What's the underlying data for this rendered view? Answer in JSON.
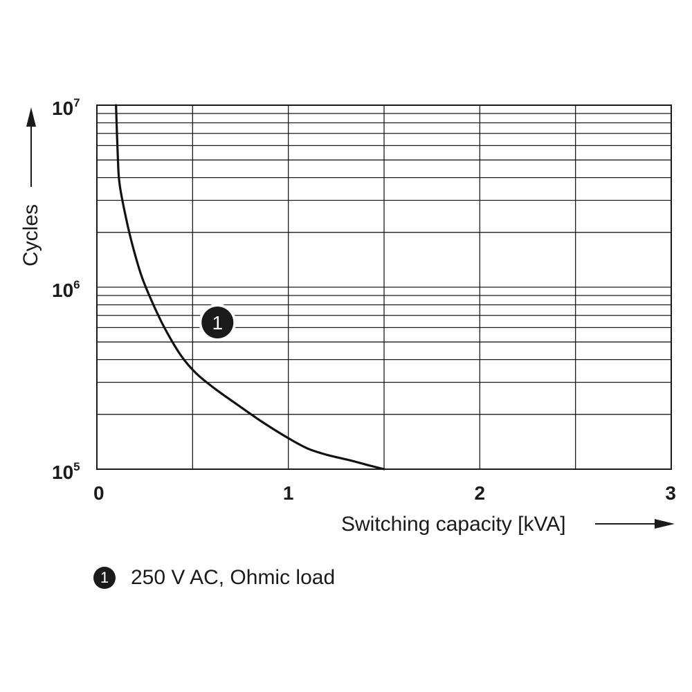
{
  "chart_data": {
    "type": "line",
    "title": "",
    "xlabel": "Switching capacity [kVA]",
    "ylabel": "Cycles",
    "x_scale": "linear",
    "y_scale": "log",
    "xlim": [
      0,
      3
    ],
    "ylim": [
      100000,
      10000000
    ],
    "x_ticks": [
      {
        "value": 0,
        "label": "0"
      },
      {
        "value": 1,
        "label": "1"
      },
      {
        "value": 2,
        "label": "2"
      },
      {
        "value": 3,
        "label": "3"
      }
    ],
    "y_ticks": [
      {
        "value": 100000,
        "base": "10",
        "exp": "5"
      },
      {
        "value": 1000000,
        "base": "10",
        "exp": "6"
      },
      {
        "value": 10000000,
        "base": "10",
        "exp": "7"
      }
    ],
    "x_grid_minor": [
      0.5,
      1.5,
      2.5
    ],
    "grid": true,
    "series": [
      {
        "name": "250 V AC, Ohmic load",
        "marker": "1",
        "label_at": {
          "x": 0.63,
          "y": 640000
        },
        "x": [
          0.1,
          0.11,
          0.12,
          0.16,
          0.2,
          0.24,
          0.3,
          0.36,
          0.44,
          0.52,
          0.62,
          0.75,
          0.87,
          1.0,
          1.1,
          1.2,
          1.32,
          1.42,
          1.5
        ],
        "y": [
          10000000,
          5000000,
          3600000,
          2200000,
          1500000,
          1100000,
          780000,
          580000,
          420000,
          335000,
          275000,
          220000,
          180000,
          148000,
          130000,
          120000,
          112000,
          105000,
          100000
        ]
      }
    ]
  },
  "legend": {
    "items": [
      {
        "marker": "1",
        "label": "250 V AC, Ohmic load"
      }
    ]
  },
  "colors": {
    "line": "#111111",
    "grid": "#1a1a1a",
    "marker_bg": "#1a1a1a",
    "marker_text": "#ffffff"
  }
}
